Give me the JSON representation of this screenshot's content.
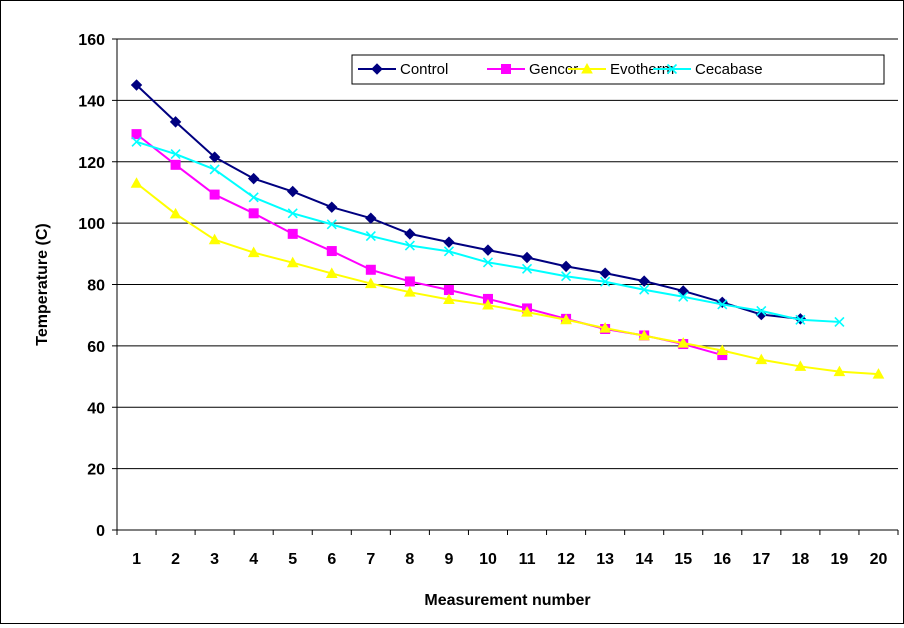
{
  "chart_data": {
    "type": "line",
    "xlabel": "Measurement number",
    "ylabel": "Temperature (C)",
    "ylim": [
      0,
      160
    ],
    "yticks": [
      0,
      20,
      40,
      60,
      80,
      100,
      120,
      140,
      160
    ],
    "categories": [
      "1",
      "2",
      "3",
      "4",
      "5",
      "6",
      "7",
      "8",
      "9",
      "10",
      "11",
      "12",
      "13",
      "14",
      "15",
      "16",
      "17",
      "18",
      "19",
      "20"
    ],
    "grid": "horizontal",
    "legend_position": "top-right",
    "series": [
      {
        "name": "Control",
        "color": "#000080",
        "marker": "diamond",
        "values": [
          145,
          133,
          121.5,
          114.5,
          110.3,
          105.2,
          101.6,
          96.5,
          93.8,
          91.2,
          88.8,
          85.9,
          83.7,
          81.1,
          77.9,
          74.2,
          70.2,
          68.8,
          null,
          null
        ]
      },
      {
        "name": "Gencor",
        "color": "#FF00FF",
        "marker": "square",
        "values": [
          129,
          119,
          109.3,
          103.2,
          96.5,
          90.9,
          84.8,
          81,
          78.2,
          75.3,
          72.2,
          68.8,
          65.5,
          63.4,
          60.6,
          57,
          null,
          null,
          null,
          null
        ]
      },
      {
        "name": "Evotherm",
        "color": "#FFFF00",
        "marker": "triangle",
        "values": [
          113,
          103,
          94.6,
          90.4,
          87.1,
          83.6,
          80.3,
          77.5,
          75.1,
          73.3,
          71,
          68.5,
          65.8,
          63.3,
          60.9,
          58.5,
          55.5,
          53.3,
          51.6,
          50.8
        ]
      },
      {
        "name": "Cecabase",
        "color": "#00FFFF",
        "marker": "x",
        "values": [
          126.5,
          122.5,
          117.5,
          108.4,
          103.2,
          99.6,
          95.8,
          92.7,
          90.8,
          87.2,
          85.1,
          82.7,
          80.9,
          78.3,
          76,
          73.5,
          71.4,
          68.5,
          67.8,
          null
        ]
      }
    ]
  }
}
